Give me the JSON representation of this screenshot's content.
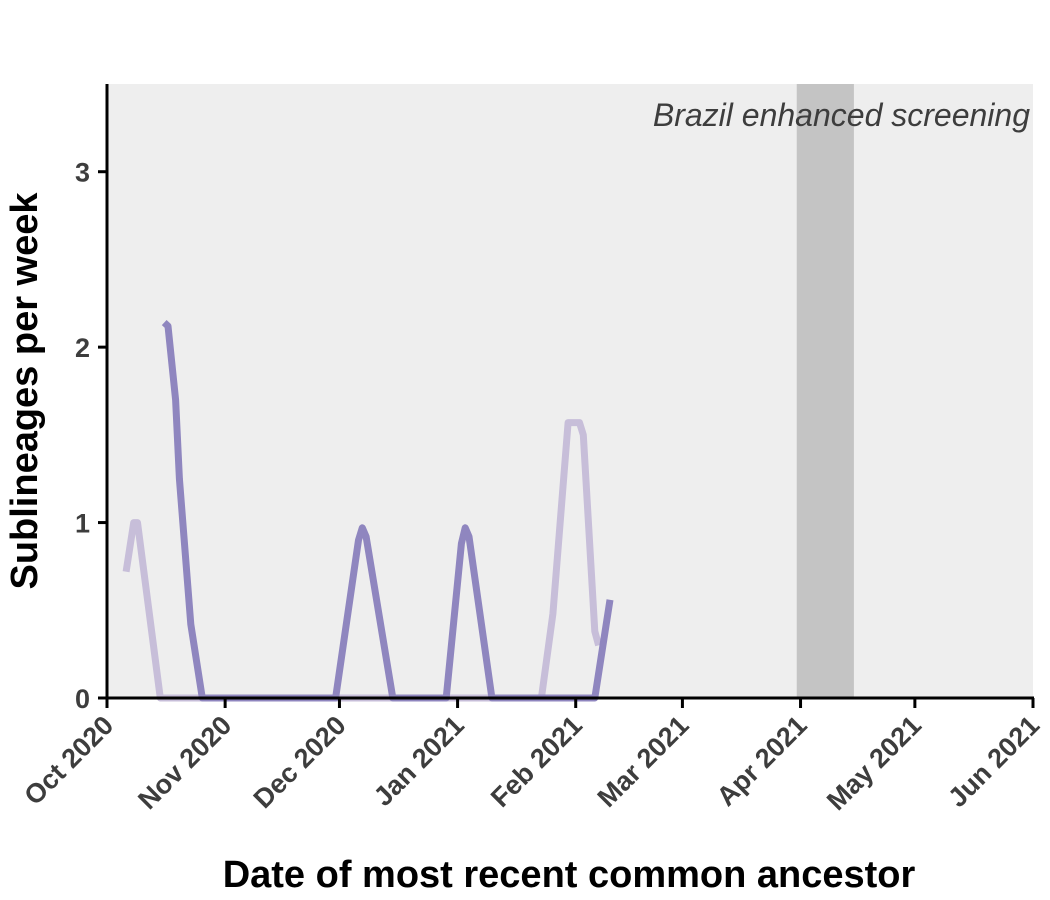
{
  "chart_data": {
    "type": "line",
    "xlabel": "Date of most recent common ancestor",
    "ylabel": "Sublineages per week",
    "xlim": [
      "2020-10-01",
      "2021-06-01"
    ],
    "ylim": [
      0,
      3.5
    ],
    "x_ticks": [
      {
        "date": "2020-10-01",
        "label": "Oct 2020"
      },
      {
        "date": "2020-11-01",
        "label": "Nov 2020"
      },
      {
        "date": "2020-12-01",
        "label": "Dec 2020"
      },
      {
        "date": "2021-01-01",
        "label": "Jan 2021"
      },
      {
        "date": "2021-02-01",
        "label": "Feb 2021"
      },
      {
        "date": "2021-03-01",
        "label": "Mar 2021"
      },
      {
        "date": "2021-04-01",
        "label": "Apr 2021"
      },
      {
        "date": "2021-05-01",
        "label": "May 2021"
      },
      {
        "date": "2021-06-01",
        "label": "Jun 2021"
      }
    ],
    "y_ticks": [
      0,
      1,
      2,
      3
    ],
    "shaded_region": {
      "start": "2021-03-31",
      "end": "2021-04-15",
      "color": "#c4c4c4"
    },
    "annotation": "Brazil enhanced screening",
    "background_color": "#eeeeee",
    "grid": false,
    "series": [
      {
        "color": "#c7bed9",
        "points": [
          [
            "2020-10-06",
            0.72
          ],
          [
            "2020-10-08",
            1.0
          ],
          [
            "2020-10-09",
            1.0
          ],
          [
            "2020-10-15",
            0.0
          ],
          [
            "2021-01-23",
            0.0
          ],
          [
            "2021-01-26",
            0.48
          ],
          [
            "2021-01-30",
            1.57
          ],
          [
            "2021-02-02",
            1.57
          ],
          [
            "2021-02-03",
            1.5
          ],
          [
            "2021-02-06",
            0.38
          ],
          [
            "2021-02-07",
            0.3
          ]
        ]
      },
      {
        "color": "#8f86bf",
        "points": [
          [
            "2020-10-16",
            2.14
          ],
          [
            "2020-10-17",
            2.12
          ],
          [
            "2020-10-19",
            1.7
          ],
          [
            "2020-10-20",
            1.25
          ],
          [
            "2020-10-23",
            0.42
          ],
          [
            "2020-10-26",
            0.0
          ],
          [
            "2020-11-30",
            0.0
          ],
          [
            "2020-12-06",
            0.9
          ],
          [
            "2020-12-07",
            0.97
          ],
          [
            "2020-12-08",
            0.92
          ],
          [
            "2020-12-15",
            0.0
          ],
          [
            "2020-12-29",
            0.0
          ],
          [
            "2021-01-02",
            0.88
          ],
          [
            "2021-01-03",
            0.97
          ],
          [
            "2021-01-04",
            0.92
          ],
          [
            "2021-01-10",
            0.0
          ],
          [
            "2021-02-06",
            0.0
          ],
          [
            "2021-02-10",
            0.56
          ]
        ]
      }
    ]
  }
}
